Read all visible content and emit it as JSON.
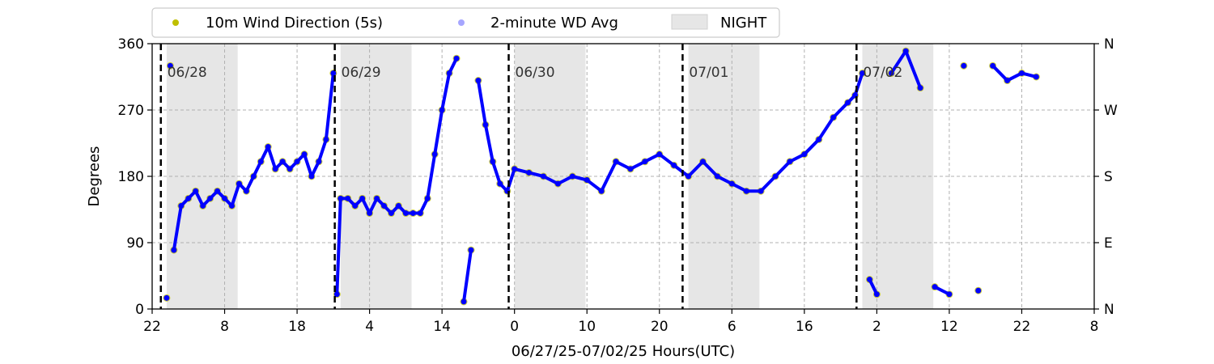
{
  "chart_data": {
    "type": "scatter",
    "ylabel": "Degrees",
    "xlabel": "06/27/25-07/02/25  Hours(UTC)",
    "ylim": [
      0,
      360
    ],
    "x_range_hours": [
      -2,
      128
    ],
    "x_tick_labels": [
      "22",
      "8",
      "18",
      "4",
      "14",
      "0",
      "10",
      "20",
      "6",
      "16",
      "2",
      "12",
      "22",
      "8"
    ],
    "y_ticks": [
      0,
      90,
      180,
      270,
      360
    ],
    "y_right_tick_labels": [
      "N",
      "E",
      "S",
      "W",
      "N"
    ],
    "grid": true,
    "legend_placement": "top-center",
    "legend": {
      "wind_5s": "10m Wind Direction (5s)",
      "wd_avg": "2-minute WD Avg",
      "night": "NIGHT"
    },
    "colors": {
      "wind_5s": "#bfbf00",
      "wd_avg": "#0000ff",
      "night": "#e6e6e6",
      "day_line": "#000000",
      "grid": "#b0b0b0"
    },
    "day_boundaries": [
      {
        "x": -0.8,
        "label": "06/28"
      },
      {
        "x": 23.2,
        "label": "06/29"
      },
      {
        "x": 47.2,
        "label": "06/30"
      },
      {
        "x": 71.2,
        "label": "07/01"
      },
      {
        "x": 95.2,
        "label": "07/02"
      }
    ],
    "night_periods": [
      [
        0,
        9.8
      ],
      [
        24,
        33.8
      ],
      [
        48,
        57.8
      ],
      [
        72,
        81.8
      ],
      [
        96,
        105.8
      ]
    ],
    "series": [
      {
        "name": "10m Wind Direction (5s)",
        "style": "scatter",
        "x": [
          0,
          0.5,
          1,
          2,
          3,
          4,
          5,
          6,
          7,
          8,
          9,
          10,
          11,
          12,
          13,
          14,
          15,
          16,
          17,
          18,
          19,
          20,
          21,
          22,
          23,
          23.5,
          24,
          25,
          26,
          27,
          28,
          29,
          30,
          31,
          32,
          33,
          34,
          35,
          36,
          37,
          38,
          39,
          40,
          41,
          42,
          43,
          44,
          45,
          46,
          47,
          48,
          50,
          52,
          54,
          56,
          58,
          60,
          62,
          64,
          66,
          68,
          70,
          72,
          74,
          76,
          78,
          80,
          82,
          84,
          86,
          88,
          90,
          92,
          94,
          95,
          96,
          97,
          98,
          100,
          102,
          104,
          106,
          108,
          110,
          112,
          114,
          116,
          118,
          120
        ],
        "y": [
          15,
          330,
          80,
          140,
          150,
          160,
          140,
          150,
          160,
          150,
          140,
          170,
          160,
          180,
          200,
          220,
          190,
          200,
          190,
          200,
          210,
          180,
          200,
          230,
          320,
          20,
          150,
          150,
          140,
          150,
          130,
          150,
          140,
          130,
          140,
          130,
          130,
          130,
          150,
          210,
          270,
          320,
          340,
          10,
          80,
          310,
          250,
          200,
          170,
          160,
          190,
          185,
          180,
          170,
          180,
          175,
          160,
          200,
          190,
          200,
          210,
          195,
          180,
          200,
          180,
          170,
          160,
          160,
          180,
          200,
          210,
          230,
          260,
          280,
          290,
          320,
          40,
          20,
          320,
          350,
          300,
          30,
          20,
          330,
          25,
          330,
          310,
          320,
          315
        ]
      },
      {
        "name": "2-minute WD Avg",
        "style": "line",
        "x": [
          0,
          0.5,
          1,
          2,
          3,
          4,
          5,
          6,
          7,
          8,
          9,
          10,
          11,
          12,
          13,
          14,
          15,
          16,
          17,
          18,
          19,
          20,
          21,
          22,
          23,
          23.5,
          24,
          25,
          26,
          27,
          28,
          29,
          30,
          31,
          32,
          33,
          34,
          35,
          36,
          37,
          38,
          39,
          40,
          41,
          42,
          43,
          44,
          45,
          46,
          47,
          48,
          50,
          52,
          54,
          56,
          58,
          60,
          62,
          64,
          66,
          68,
          70,
          72,
          74,
          76,
          78,
          80,
          82,
          84,
          86,
          88,
          90,
          92,
          94,
          95,
          96,
          97,
          98,
          100,
          102,
          104,
          106,
          108,
          110,
          112,
          114,
          116,
          118,
          120
        ],
        "y": [
          15,
          330,
          80,
          140,
          150,
          160,
          140,
          150,
          160,
          150,
          140,
          170,
          160,
          180,
          200,
          220,
          190,
          200,
          190,
          200,
          210,
          180,
          200,
          230,
          320,
          20,
          150,
          150,
          140,
          150,
          130,
          150,
          140,
          130,
          140,
          130,
          130,
          130,
          150,
          210,
          270,
          320,
          340,
          10,
          80,
          310,
          250,
          200,
          170,
          160,
          190,
          185,
          180,
          170,
          180,
          175,
          160,
          200,
          190,
          200,
          210,
          195,
          180,
          200,
          180,
          170,
          160,
          160,
          180,
          200,
          210,
          230,
          260,
          280,
          290,
          320,
          40,
          20,
          320,
          350,
          300,
          30,
          20,
          330,
          25,
          330,
          310,
          320,
          315
        ]
      }
    ]
  }
}
